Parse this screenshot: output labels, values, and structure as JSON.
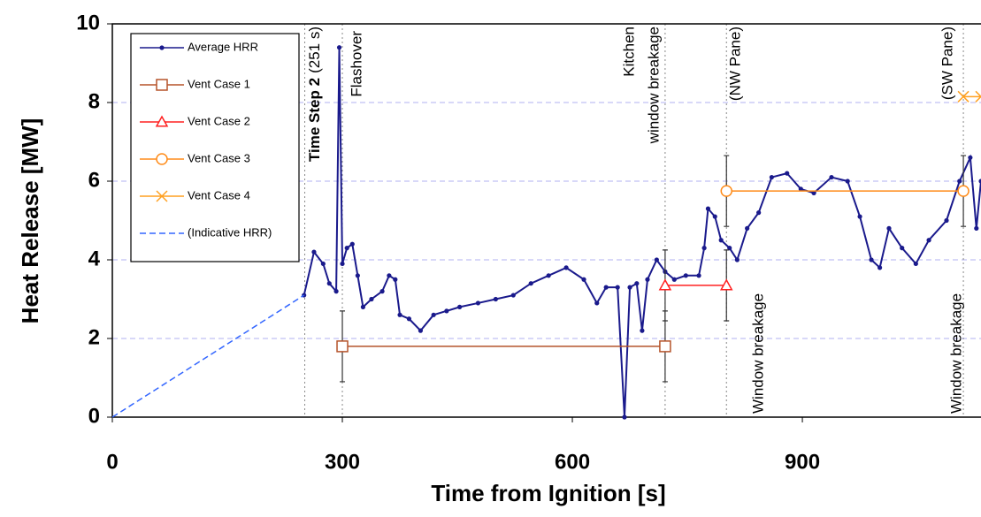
{
  "chart_data": {
    "type": "line",
    "xlabel": "Time from Ignition [s]",
    "ylabel": "Heat Release [MW]",
    "xlim": [
      0,
      1133
    ],
    "ylim": [
      0,
      10
    ],
    "xticks": [
      0,
      300,
      600,
      900
    ],
    "yticks": [
      0,
      2,
      4,
      6,
      8,
      10
    ],
    "grid": true,
    "legend": "upper left",
    "event_lines": [
      251,
      300,
      721,
      801,
      1110
    ],
    "annotations": [
      "Time Step 2",
      "(251 s)",
      "Flashover",
      "Kitchen",
      "window breakage",
      "(NW Pane)",
      "Window breakage",
      "(SW Pane)",
      "Window breakage"
    ],
    "series": [
      {
        "name": "Average HRR",
        "color": "#1a1a8c",
        "marker": "dot",
        "x": [
          250,
          263,
          275,
          283,
          292,
          296,
          300,
          306,
          313,
          320,
          327,
          338,
          352,
          361,
          369,
          375,
          387,
          402,
          419,
          436,
          453,
          477,
          500,
          523,
          546,
          569,
          592,
          615,
          632,
          644,
          659,
          668,
          675,
          684,
          691,
          698,
          710,
          721,
          733,
          748,
          765,
          772,
          777,
          786,
          794,
          805,
          815,
          828,
          843,
          860,
          880,
          898,
          915,
          938,
          959,
          975,
          990,
          1001,
          1013,
          1030,
          1048,
          1065,
          1088,
          1105,
          1119,
          1127,
          1133
        ],
        "values": [
          3.1,
          4.2,
          3.9,
          3.4,
          3.2,
          9.4,
          3.9,
          4.3,
          4.4,
          3.6,
          2.8,
          3.0,
          3.2,
          3.6,
          3.5,
          2.6,
          2.5,
          2.2,
          2.6,
          2.7,
          2.8,
          2.9,
          3.0,
          3.1,
          3.4,
          3.6,
          3.8,
          3.5,
          2.9,
          3.3,
          3.3,
          0.0,
          3.3,
          3.4,
          2.2,
          3.5,
          4.0,
          3.7,
          3.5,
          3.6,
          3.6,
          4.3,
          5.3,
          5.1,
          4.5,
          4.3,
          4.0,
          4.8,
          5.2,
          6.1,
          6.2,
          5.8,
          5.7,
          6.1,
          6.0,
          5.1,
          4.0,
          3.8,
          4.8,
          4.3,
          3.9,
          4.5,
          5.0,
          6.0,
          6.6,
          4.8,
          6.0
        ]
      },
      {
        "name": "Vent Case 1",
        "color": "#b5532a",
        "marker": "square",
        "x": [
          300,
          721
        ],
        "values": [
          1.8,
          1.8
        ],
        "errors": [
          0.9,
          0.9
        ]
      },
      {
        "name": "Vent Case 2",
        "color": "#ff2020",
        "marker": "triangle",
        "x": [
          721,
          801
        ],
        "values": [
          3.35,
          3.35
        ],
        "errors": [
          0.9,
          0.9
        ]
      },
      {
        "name": "Vent Case 3",
        "color": "#ff8c1a",
        "marker": "circle",
        "x": [
          801,
          1110
        ],
        "values": [
          5.75,
          5.75
        ],
        "errors": [
          0.9,
          0.9
        ]
      },
      {
        "name": "Vent Case 4",
        "color": "#ffa020",
        "marker": "x",
        "x": [
          1110,
          1133
        ],
        "values": [
          8.15,
          8.15
        ]
      },
      {
        "name": "(Indicative HRR)",
        "color": "#3366ff",
        "marker": "dash",
        "x": [
          0,
          250
        ],
        "values": [
          0,
          3.1
        ]
      }
    ]
  }
}
